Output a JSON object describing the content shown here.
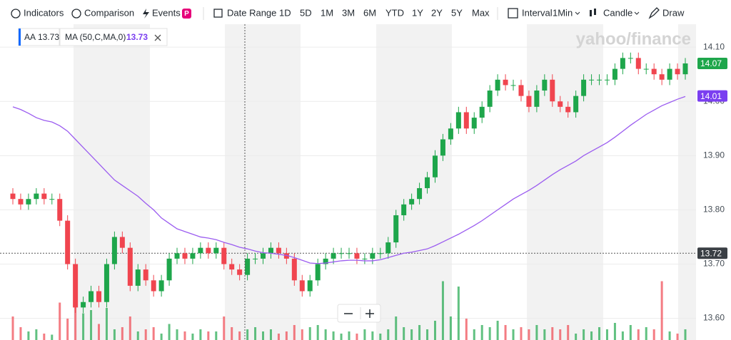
{
  "toolbar": {
    "items": [
      "Indicators",
      "Comparison",
      "Events",
      "Date Range",
      "1D",
      "5D",
      "1M",
      "3M",
      "6M",
      "YTD",
      "1Y",
      "2Y",
      "5Y",
      "Max",
      "Interval",
      "1Min",
      "Candle",
      "Draw"
    ]
  },
  "chart_data": {
    "type": "candlestick",
    "watermark": "yahoo/finance",
    "up_color": "#1ea64b",
    "down_color": "#f0454f",
    "ylim": [
      13.56,
      14.137
    ],
    "yticks": [
      {
        "value": 14.1,
        "label": "14.10"
      },
      {
        "value": 14.0,
        "label": "14.00"
      },
      {
        "value": 13.9,
        "label": "13.90"
      },
      {
        "value": 13.8,
        "label": "13.80"
      },
      {
        "value": 13.7,
        "label": "13.70"
      },
      {
        "value": 13.6,
        "label": "13.60"
      }
    ],
    "grid": true,
    "series": [
      {
        "name": "AA",
        "color": "#0f69ff",
        "legend_value": 13.73,
        "last_value": 14.07,
        "open": [
          13.83,
          13.82,
          13.81,
          13.82,
          13.83,
          13.82,
          13.82,
          13.78,
          13.7,
          13.62,
          13.63,
          13.65,
          13.63,
          13.7,
          13.75,
          13.73,
          13.66,
          13.69,
          13.67,
          13.65,
          13.67,
          13.71,
          13.72,
          13.71,
          13.72,
          13.73,
          13.72,
          13.73,
          13.7,
          13.69,
          13.68,
          13.71,
          13.71,
          13.72,
          13.73,
          13.72,
          13.71,
          13.67,
          13.65,
          13.67,
          13.7,
          13.71,
          13.72,
          13.72,
          13.72,
          13.71,
          13.71,
          13.72,
          13.72,
          13.74,
          13.79,
          13.81,
          13.82,
          13.84,
          13.86,
          13.9,
          13.93,
          13.95,
          13.98,
          13.95,
          13.97,
          13.99,
          14.02,
          14.04,
          14.03,
          14.03,
          14.01,
          13.99,
          14.02,
          14.04,
          14.0,
          13.99,
          13.98,
          14.01,
          14.04,
          14.04,
          14.04,
          14.04,
          14.06,
          14.08,
          14.08,
          14.06,
          14.06,
          14.05,
          14.04,
          14.06,
          14.05
        ],
        "high": [
          13.84,
          13.83,
          13.83,
          13.84,
          13.84,
          13.83,
          13.83,
          13.79,
          13.71,
          13.64,
          13.66,
          13.66,
          13.71,
          13.76,
          13.76,
          13.74,
          13.7,
          13.7,
          13.68,
          13.68,
          13.72,
          13.73,
          13.73,
          13.73,
          13.74,
          13.74,
          13.74,
          13.74,
          13.71,
          13.7,
          13.72,
          13.72,
          13.73,
          13.74,
          13.74,
          13.73,
          13.72,
          13.68,
          13.68,
          13.71,
          13.72,
          13.73,
          13.73,
          13.73,
          13.73,
          13.72,
          13.73,
          13.73,
          13.75,
          13.8,
          13.82,
          13.83,
          13.85,
          13.87,
          13.91,
          13.94,
          13.96,
          13.99,
          13.99,
          13.98,
          14.0,
          14.03,
          14.05,
          14.05,
          14.04,
          14.04,
          14.02,
          14.03,
          14.05,
          14.05,
          14.01,
          14.0,
          14.02,
          14.05,
          14.05,
          14.05,
          14.05,
          14.07,
          14.09,
          14.09,
          14.09,
          14.07,
          14.07,
          14.06,
          14.07,
          14.07,
          14.08
        ],
        "low": [
          13.81,
          13.8,
          13.8,
          13.81,
          13.81,
          13.81,
          13.77,
          13.69,
          13.61,
          13.61,
          13.62,
          13.62,
          13.62,
          13.69,
          13.72,
          13.65,
          13.65,
          13.66,
          13.64,
          13.64,
          13.66,
          13.7,
          13.7,
          13.7,
          13.71,
          13.71,
          13.71,
          13.69,
          13.68,
          13.67,
          13.67,
          13.7,
          13.7,
          13.71,
          13.71,
          13.7,
          13.66,
          13.64,
          13.64,
          13.66,
          13.69,
          13.7,
          13.71,
          13.71,
          13.7,
          13.7,
          13.7,
          13.71,
          13.71,
          13.73,
          13.78,
          13.8,
          13.81,
          13.83,
          13.85,
          13.89,
          13.92,
          13.94,
          13.94,
          13.94,
          13.96,
          13.98,
          14.01,
          14.02,
          14.02,
          14.0,
          13.98,
          13.98,
          14.01,
          13.99,
          13.98,
          13.97,
          13.97,
          14.0,
          14.03,
          14.03,
          14.03,
          14.03,
          14.05,
          14.07,
          14.05,
          14.05,
          14.04,
          14.03,
          14.03,
          14.04,
          14.04
        ],
        "close": [
          13.82,
          13.81,
          13.82,
          13.83,
          13.82,
          13.82,
          13.78,
          13.7,
          13.62,
          13.63,
          13.65,
          13.63,
          13.7,
          13.75,
          13.73,
          13.66,
          13.69,
          13.67,
          13.65,
          13.67,
          13.71,
          13.72,
          13.71,
          13.72,
          13.73,
          13.72,
          13.73,
          13.7,
          13.69,
          13.68,
          13.71,
          13.71,
          13.72,
          13.73,
          13.72,
          13.71,
          13.67,
          13.65,
          13.67,
          13.7,
          13.71,
          13.72,
          13.72,
          13.72,
          13.71,
          13.71,
          13.72,
          13.72,
          13.74,
          13.79,
          13.81,
          13.82,
          13.84,
          13.86,
          13.9,
          13.93,
          13.95,
          13.98,
          13.95,
          13.97,
          13.99,
          14.02,
          14.04,
          14.03,
          14.03,
          14.01,
          13.99,
          14.02,
          14.04,
          14.0,
          13.99,
          13.98,
          14.01,
          14.04,
          14.04,
          14.04,
          14.04,
          14.06,
          14.08,
          14.08,
          14.06,
          14.06,
          14.05,
          14.04,
          14.06,
          14.05,
          14.07
        ],
        "volume": [
          22,
          12,
          8,
          10,
          6,
          5,
          35,
          20,
          45,
          25,
          28,
          15,
          30,
          10,
          12,
          22,
          8,
          10,
          12,
          6,
          15,
          10,
          8,
          6,
          10,
          8,
          8,
          22,
          12,
          8,
          10,
          12,
          8,
          10,
          6,
          8,
          14,
          10,
          12,
          14,
          10,
          8,
          6,
          8,
          6,
          10,
          8,
          6,
          10,
          22,
          12,
          10,
          14,
          10,
          18,
          55,
          22,
          50,
          20,
          10,
          14,
          12,
          18,
          14,
          10,
          12,
          10,
          14,
          10,
          12,
          10,
          14,
          6,
          10,
          8,
          12,
          10,
          16,
          8,
          14,
          10,
          12,
          10,
          55,
          8,
          6,
          10
        ]
      },
      {
        "name": "MA (50,C,MA,0)",
        "color": "#9b5cf0",
        "tag_color": "#7a3ef0",
        "legend_value": 13.73,
        "last_value": 14.01,
        "values": [
          13.99,
          13.985,
          13.978,
          13.97,
          13.965,
          13.962,
          13.955,
          13.945,
          13.93,
          13.915,
          13.9,
          13.885,
          13.87,
          13.855,
          13.845,
          13.835,
          13.825,
          13.812,
          13.8,
          13.785,
          13.775,
          13.765,
          13.76,
          13.755,
          13.75,
          13.748,
          13.745,
          13.74,
          13.736,
          13.731,
          13.728,
          13.724,
          13.721,
          13.72,
          13.718,
          13.716,
          13.712,
          13.707,
          13.702,
          13.701,
          13.702,
          13.704,
          13.706,
          13.707,
          13.707,
          13.706,
          13.706,
          13.708,
          13.712,
          13.716,
          13.72,
          13.722,
          13.725,
          13.728,
          13.734,
          13.741,
          13.748,
          13.755,
          13.763,
          13.771,
          13.78,
          13.79,
          13.8,
          13.81,
          13.82,
          13.828,
          13.836,
          13.845,
          13.855,
          13.865,
          13.874,
          13.882,
          13.89,
          13.9,
          13.908,
          13.916,
          13.924,
          13.934,
          13.945,
          13.956,
          13.966,
          13.976,
          13.984,
          13.992,
          13.998,
          14.004,
          14.009
        ]
      }
    ],
    "crosshair": 13.72
  }
}
